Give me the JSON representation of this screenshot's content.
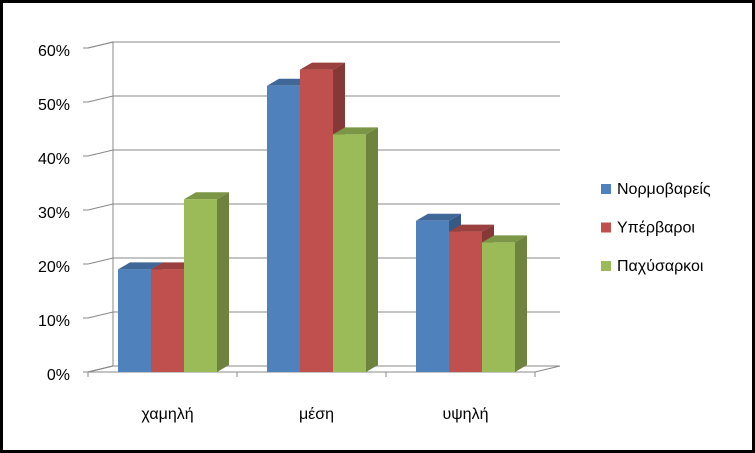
{
  "chart_data": {
    "type": "bar3d",
    "categories": [
      "χαμηλή",
      "μέση",
      "υψηλή"
    ],
    "series": [
      {
        "name": "Νορμοβαρείς",
        "color": "#4f81bd",
        "values": [
          19,
          53,
          28
        ]
      },
      {
        "name": "Υπέρβαροι",
        "color": "#c0504d",
        "values": [
          19,
          56,
          26
        ]
      },
      {
        "name": "Παχύσαρκοι",
        "color": "#9bbb59",
        "values": [
          32,
          44,
          24
        ]
      }
    ],
    "ylim": [
      0,
      60
    ],
    "yticks": [
      {
        "value": 0,
        "label": "0%"
      },
      {
        "value": 10,
        "label": "10%"
      },
      {
        "value": 20,
        "label": "20%"
      },
      {
        "value": 30,
        "label": "30%"
      },
      {
        "value": 40,
        "label": "40%"
      },
      {
        "value": 50,
        "label": "50%"
      },
      {
        "value": 60,
        "label": "60%"
      }
    ],
    "grid": true,
    "legend": "right"
  }
}
